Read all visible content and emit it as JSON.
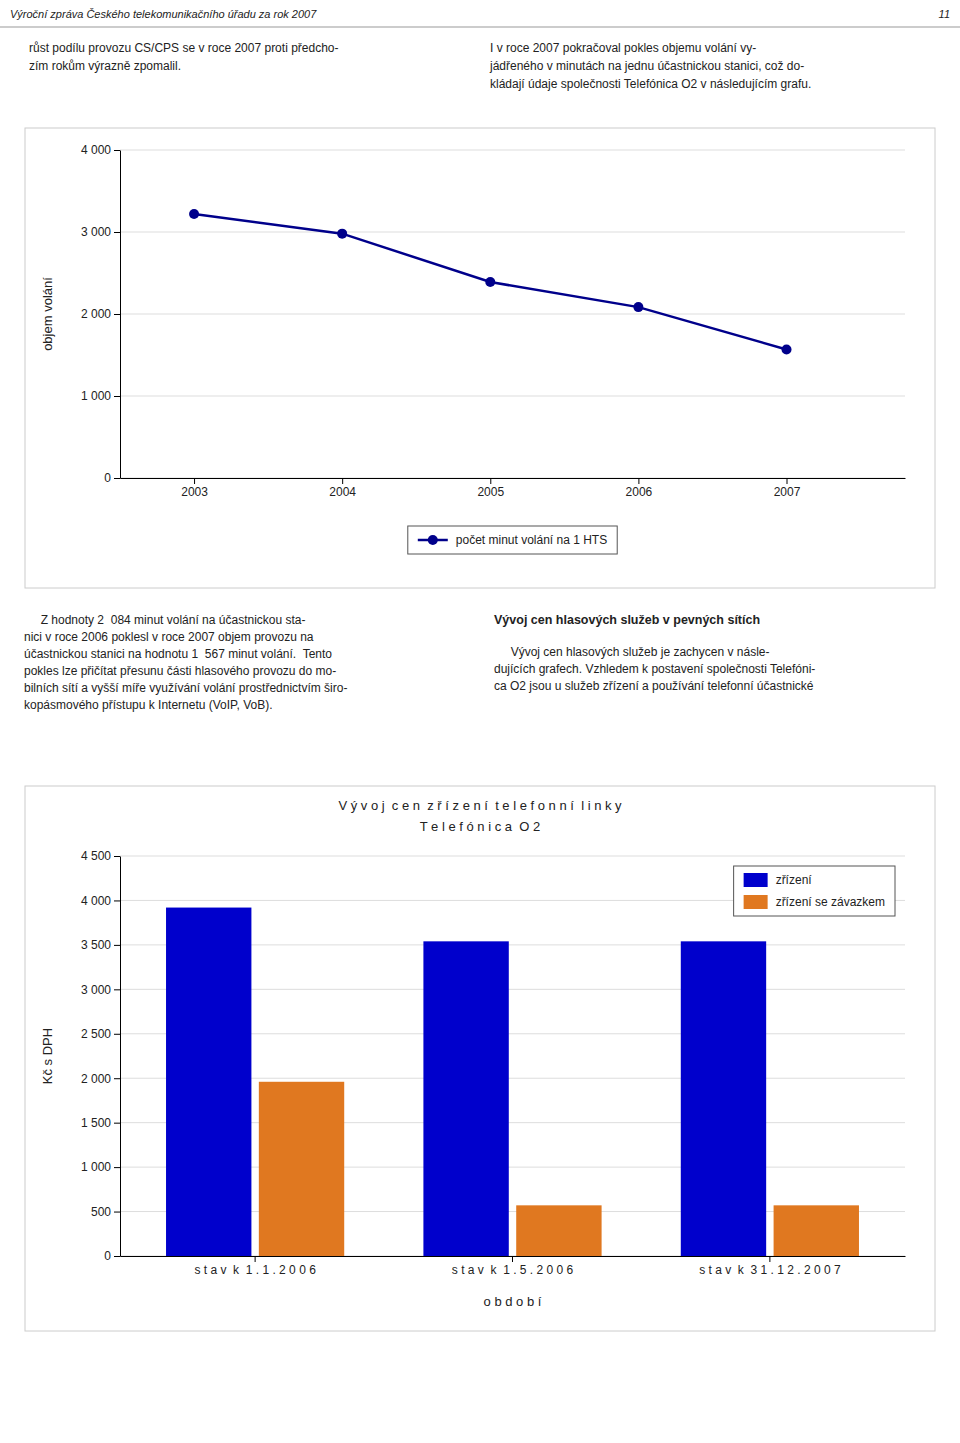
{
  "page_text": {
    "header": "Výroční zpráva Českého telekomunikačního úřadu za rok 2007",
    "page_number": "11",
    "top_left": [
      "růst podílu provozu CS/CPS se v roce 2007 proti předcho-",
      "zím rokům výrazně zpomalil."
    ],
    "top_right": [
      "I v roce 2007 pokračoval pokles objemu volání vy-",
      "jádřeného v minutách na jednu účastnickou stanici, což do-",
      "kládají údaje společnosti Telefónica O2 v následujícím grafu."
    ],
    "mid_left": [
      "     Z hodnoty 2  084 minut volání na účastnickou sta-",
      "nici v roce 2006 poklesl v roce 2007 objem provozu na",
      "účastnickou stanici na hodnotu 1  567 minut volání.  Tento",
      "pokles lze přičítat přesunu části hlasového provozu do mo-",
      "bilních sítí a vyšší míře využívání volání prostřednictvím širo-",
      "kopásmového přístupu k Internetu (VoIP, VoB)."
    ],
    "mid_heading": "Vývoj cen hlasových služeb v pevných sítích",
    "mid_right": [
      "     Vývoj cen hlasových služeb je zachycen v násle-",
      "dujících grafech. Vzhledem k postavení společnosti Telefóni-",
      "ca O2 jsou u služeb zřízení a používání telefonní účastnické"
    ]
  },
  "chart_data": [
    {
      "type": "line",
      "x": [
        2003,
        2004,
        2005,
        2006,
        2007
      ],
      "xlim": [
        2002.5,
        2007.8
      ],
      "xticks": [
        2003,
        2004,
        2005,
        2006,
        2007
      ],
      "ylim": [
        0,
        4000
      ],
      "yticks": [
        0,
        {
          "value": 1000,
          "label": "1 000"
        },
        {
          "value": 2000,
          "label": "2 000"
        },
        {
          "value": 3000,
          "label": "3 000"
        },
        {
          "value": 4000,
          "label": "4 000"
        }
      ],
      "ylabel": "objem volání",
      "grid": true,
      "legend": "bottom",
      "series": [
        {
          "name": "počet minut volání na 1 HTS",
          "color": "#00008B",
          "marker": "circle",
          "values": [
            3220,
            2980,
            2390,
            2084,
            1567
          ]
        }
      ]
    },
    {
      "type": "bar",
      "title": "V ý v o j  c e n  z ř í z e n í  t e l e f o n n í  l i n k y",
      "subtitle": "T e l e f ó n i c a  O 2",
      "categories": [
        "s t a v  k  1 . 1 . 2 0 0 6",
        "s t a v  k  1 . 5 . 2 0 0 6",
        "s t a v  k  3 1 . 1 2 . 2 0 0 7"
      ],
      "xlabel": "o b d o b í",
      "ylabel": "Kč s DPH",
      "ylim": [
        0,
        4500
      ],
      "yticks": [
        0,
        500,
        {
          "value": 1000,
          "label": "1 000"
        },
        {
          "value": 1500,
          "label": "1 500"
        },
        {
          "value": 2000,
          "label": "2 000"
        },
        {
          "value": 2500,
          "label": "2 500"
        },
        {
          "value": 3000,
          "label": "3 000"
        },
        {
          "value": 3500,
          "label": "3 500"
        },
        {
          "value": 4000,
          "label": "4 000"
        },
        {
          "value": 4500,
          "label": "4 500"
        }
      ],
      "grid": true,
      "legend": "upper right",
      "series": [
        {
          "name": "zřízení",
          "color": "#0000cc",
          "values": [
            3920,
            3540,
            3540
          ]
        },
        {
          "name": "zřízení se závazkem",
          "color": "#e07820",
          "values": [
            1960,
            570,
            570
          ]
        }
      ]
    }
  ]
}
